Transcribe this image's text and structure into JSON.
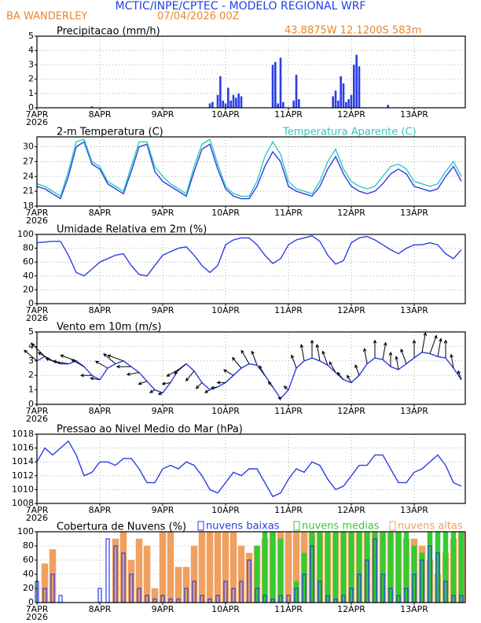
{
  "header": {
    "title": "MCTIC/INPE/CPTEC - MODELO REGIONAL WRF",
    "location": "BA WANDERLEY",
    "date": "07/04/2026 00Z",
    "coords": "43.8875W  12.1200S  583m"
  },
  "chart_data": [
    {
      "type": "bar",
      "title": "Precipitacao (mm/h)",
      "color": "#2a3ee6",
      "year": "2026",
      "x": [
        21,
        66,
        67,
        69,
        70,
        71,
        72,
        73,
        74,
        75,
        76,
        77,
        78,
        90,
        91,
        92,
        93,
        94,
        98,
        99,
        100,
        113,
        114,
        115,
        116,
        117,
        118,
        119,
        120,
        121,
        122,
        123,
        134
      ],
      "values": [
        0.1,
        0.3,
        0.4,
        0.9,
        2.2,
        0.5,
        0.3,
        1.4,
        0.5,
        0.9,
        0.7,
        1,
        0.8,
        3,
        3.2,
        0.3,
        3.5,
        0.4,
        0.5,
        2.3,
        0.6,
        0.8,
        1.2,
        0.5,
        2.2,
        1.7,
        0.4,
        0.6,
        0.9,
        3,
        3.7,
        2.9,
        0.2
      ],
      "xlim": [
        0,
        163.5
      ],
      "xticks": [
        {
          "value": 0,
          "label": "7APR"
        },
        {
          "value": 24,
          "label": "8APR"
        },
        {
          "value": 48,
          "label": "9APR"
        },
        {
          "value": 72,
          "label": "10APR"
        },
        {
          "value": 96,
          "label": "11APR"
        },
        {
          "value": 120,
          "label": "12APR"
        },
        {
          "value": 144,
          "label": "13APR"
        }
      ],
      "ylim": [
        0,
        5
      ],
      "yticks": [
        0,
        1,
        2,
        3,
        4,
        5
      ],
      "grid": true
    },
    {
      "type": "line",
      "title": "2-m Temperatura (C)",
      "year": "2026",
      "x": [
        0,
        3,
        6,
        9,
        12,
        15,
        18,
        21,
        24,
        27,
        30,
        33,
        36,
        39,
        42,
        45,
        48,
        51,
        54,
        57,
        60,
        63,
        66,
        69,
        72,
        75,
        78,
        81,
        84,
        87,
        90,
        93,
        96,
        99,
        102,
        105,
        108,
        111,
        114,
        117,
        120,
        123,
        126,
        129,
        132,
        135,
        138,
        141,
        144,
        147,
        150,
        153,
        156,
        159,
        162
      ],
      "series": [
        {
          "color": "#2a3ee6",
          "values": [
            22,
            21.5,
            20.5,
            19.5,
            24,
            30,
            31,
            26.5,
            25.5,
            22.5,
            21.5,
            20.5,
            25,
            30,
            30.5,
            25,
            23,
            22,
            21,
            20,
            25,
            29.5,
            30.5,
            25.5,
            21.5,
            20,
            19.5,
            19.5,
            22,
            26,
            29,
            27,
            22,
            21,
            20.5,
            20,
            22,
            25.5,
            28,
            24.5,
            22,
            21,
            20.5,
            21,
            22.5,
            24.5,
            25.5,
            24.5,
            22,
            21.5,
            21,
            21.5,
            24,
            26,
            23
          ]
        },
        {
          "name": "Temperatura Aparente (C)",
          "color": "#2ec9c0",
          "values": [
            22.5,
            22,
            21,
            20,
            25,
            31,
            31.5,
            27,
            26,
            23,
            22,
            21,
            26,
            31,
            31,
            26,
            24,
            22.5,
            21.5,
            20.5,
            26,
            30.5,
            31.5,
            26.5,
            22,
            20.5,
            20,
            20,
            23,
            28,
            31,
            28.5,
            23,
            21.5,
            21,
            20.5,
            23,
            27,
            29.5,
            25.5,
            23,
            22,
            21.5,
            22,
            24,
            26,
            26.5,
            25.5,
            23,
            22.5,
            22,
            22.5,
            25,
            27,
            24
          ]
        }
      ],
      "xlim": [
        0,
        163.5
      ],
      "xticks": [
        {
          "value": 0,
          "label": "7APR"
        },
        {
          "value": 24,
          "label": "8APR"
        },
        {
          "value": 48,
          "label": "9APR"
        },
        {
          "value": 72,
          "label": "10APR"
        },
        {
          "value": 96,
          "label": "11APR"
        },
        {
          "value": 120,
          "label": "12APR"
        },
        {
          "value": 144,
          "label": "13APR"
        }
      ],
      "ylim": [
        18,
        32
      ],
      "yticks": [
        18,
        21,
        24,
        27,
        30
      ],
      "grid": true
    },
    {
      "type": "line",
      "title": "Umidade Relativa em 2m (%)",
      "year": "2026",
      "x": [
        0,
        3,
        6,
        9,
        12,
        15,
        18,
        21,
        24,
        27,
        30,
        33,
        36,
        39,
        42,
        45,
        48,
        51,
        54,
        57,
        60,
        63,
        66,
        69,
        72,
        75,
        78,
        81,
        84,
        87,
        90,
        93,
        96,
        99,
        102,
        105,
        108,
        111,
        114,
        117,
        120,
        123,
        126,
        129,
        132,
        135,
        138,
        141,
        144,
        147,
        150,
        153,
        156,
        159,
        162
      ],
      "series": [
        {
          "color": "#2a3ee6",
          "values": [
            88,
            89,
            90,
            90,
            70,
            45,
            40,
            50,
            60,
            65,
            70,
            72,
            55,
            42,
            40,
            55,
            70,
            75,
            80,
            82,
            70,
            55,
            45,
            55,
            85,
            92,
            95,
            95,
            85,
            70,
            58,
            65,
            85,
            92,
            95,
            98,
            90,
            70,
            57,
            62,
            88,
            95,
            97,
            92,
            85,
            78,
            72,
            80,
            85,
            85,
            88,
            85,
            72,
            65,
            78
          ]
        }
      ],
      "xlim": [
        0,
        163.5
      ],
      "xticks": [
        {
          "value": 0,
          "label": "7APR"
        },
        {
          "value": 24,
          "label": "8APR"
        },
        {
          "value": 48,
          "label": "9APR"
        },
        {
          "value": 72,
          "label": "10APR"
        },
        {
          "value": 96,
          "label": "11APR"
        },
        {
          "value": 120,
          "label": "12APR"
        },
        {
          "value": 144,
          "label": "13APR"
        }
      ],
      "ylim": [
        0,
        100
      ],
      "yticks": [
        0,
        20,
        40,
        60,
        80,
        100
      ],
      "grid": true
    },
    {
      "type": "line",
      "title": "Vento em 10m (m/s)",
      "year": "2026",
      "x": [
        0,
        3,
        6,
        9,
        12,
        15,
        18,
        21,
        24,
        27,
        30,
        33,
        36,
        39,
        42,
        45,
        48,
        51,
        54,
        57,
        60,
        63,
        66,
        69,
        72,
        75,
        78,
        81,
        84,
        87,
        90,
        93,
        96,
        99,
        102,
        105,
        108,
        111,
        114,
        117,
        120,
        123,
        126,
        129,
        132,
        135,
        138,
        141,
        144,
        147,
        150,
        153,
        156,
        159,
        162
      ],
      "series": [
        {
          "color": "#2a3ee6",
          "values": [
            3,
            3.3,
            3,
            2.8,
            2.8,
            3,
            2.6,
            2,
            1.7,
            2.5,
            2.8,
            3,
            2.6,
            2.2,
            1.6,
            1,
            0.8,
            1.5,
            2.4,
            2.8,
            2.3,
            1.5,
            1,
            1.2,
            1.5,
            2,
            2.5,
            2.8,
            2.7,
            2,
            1.2,
            0.4,
            1,
            2.5,
            3,
            3.2,
            3,
            2.7,
            2.2,
            1.7,
            1.5,
            2,
            2.8,
            3.2,
            3.1,
            2.6,
            2.4,
            2.8,
            3.2,
            3.6,
            3.5,
            3.3,
            3.2,
            2.5,
            1.7
          ],
          "direction": [
            130,
            135,
            120,
            110,
            100,
            110,
            120,
            90,
            100,
            120,
            130,
            110,
            90,
            80,
            70,
            60,
            70,
            80,
            60,
            50,
            40,
            45,
            60,
            80,
            90,
            120,
            140,
            150,
            160,
            150,
            140,
            110,
            130,
            160,
            170,
            180,
            170,
            160,
            150,
            140,
            150,
            160,
            170,
            180,
            190,
            180,
            170,
            160,
            180,
            190,
            200,
            190,
            180,
            170,
            160
          ]
        }
      ],
      "xlim": [
        0,
        163.5
      ],
      "xticks": [
        {
          "value": 0,
          "label": "7APR"
        },
        {
          "value": 24,
          "label": "8APR"
        },
        {
          "value": 48,
          "label": "9APR"
        },
        {
          "value": 72,
          "label": "10APR"
        },
        {
          "value": 96,
          "label": "11APR"
        },
        {
          "value": 120,
          "label": "12APR"
        },
        {
          "value": 144,
          "label": "13APR"
        }
      ],
      "ylim": [
        0,
        5
      ],
      "yticks": [
        0,
        1,
        2,
        3,
        4,
        5
      ],
      "grid": true
    },
    {
      "type": "line",
      "title": "Pressao ao Nivel Medio do Mar (hPa)",
      "year": "2026",
      "x": [
        0,
        3,
        6,
        9,
        12,
        15,
        18,
        21,
        24,
        27,
        30,
        33,
        36,
        39,
        42,
        45,
        48,
        51,
        54,
        57,
        60,
        63,
        66,
        69,
        72,
        75,
        78,
        81,
        84,
        87,
        90,
        93,
        96,
        99,
        102,
        105,
        108,
        111,
        114,
        117,
        120,
        123,
        126,
        129,
        132,
        135,
        138,
        141,
        144,
        147,
        150,
        153,
        156,
        159,
        162
      ],
      "series": [
        {
          "color": "#2a3ee6",
          "values": [
            1014,
            1016,
            1015,
            1016,
            1017,
            1015,
            1012,
            1012.5,
            1014,
            1014,
            1013.5,
            1014.5,
            1014.5,
            1013,
            1011,
            1011,
            1013,
            1013.5,
            1013,
            1014,
            1013.5,
            1012,
            1010,
            1009.5,
            1011,
            1012.5,
            1012,
            1013,
            1013,
            1011,
            1009,
            1009.5,
            1011.5,
            1013,
            1012.5,
            1014,
            1013.5,
            1011.5,
            1010,
            1010.5,
            1012,
            1013.5,
            1013.5,
            1015,
            1015,
            1013,
            1011,
            1011,
            1012.5,
            1013,
            1014,
            1015,
            1013.5,
            1011,
            1010.5
          ]
        }
      ],
      "xlim": [
        0,
        163.5
      ],
      "xticks": [
        {
          "value": 0,
          "label": "7APR"
        },
        {
          "value": 24,
          "label": "8APR"
        },
        {
          "value": 48,
          "label": "9APR"
        },
        {
          "value": 72,
          "label": "10APR"
        },
        {
          "value": 96,
          "label": "11APR"
        },
        {
          "value": 120,
          "label": "12APR"
        },
        {
          "value": 144,
          "label": "13APR"
        }
      ],
      "ylim": [
        1008,
        1018
      ],
      "yticks": [
        1008,
        1010,
        1012,
        1014,
        1016,
        1018
      ],
      "grid": true
    },
    {
      "type": "bar",
      "title": "Cobertura de Nuvens (%)",
      "year": "2026",
      "x": [
        0,
        3,
        6,
        9,
        12,
        15,
        18,
        21,
        24,
        27,
        30,
        33,
        36,
        39,
        42,
        45,
        48,
        51,
        54,
        57,
        60,
        63,
        66,
        69,
        72,
        75,
        78,
        81,
        84,
        87,
        90,
        93,
        96,
        99,
        102,
        105,
        108,
        111,
        114,
        117,
        120,
        123,
        126,
        129,
        132,
        135,
        138,
        141,
        144,
        147,
        150,
        153,
        156,
        159,
        162
      ],
      "series": [
        {
          "name": "nuvens baixas",
          "color": "#2a3ee6",
          "values": [
            30,
            20,
            40,
            10,
            0,
            0,
            0,
            0,
            20,
            90,
            80,
            70,
            40,
            20,
            10,
            5,
            10,
            5,
            5,
            20,
            30,
            10,
            5,
            10,
            30,
            20,
            30,
            60,
            20,
            10,
            5,
            10,
            10,
            20,
            40,
            80,
            30,
            10,
            5,
            10,
            20,
            40,
            60,
            90,
            40,
            20,
            10,
            20,
            40,
            60,
            80,
            70,
            30,
            10,
            10
          ]
        },
        {
          "name": "nuvens medias",
          "color": "#33cc33",
          "values": [
            0,
            0,
            0,
            0,
            0,
            0,
            0,
            0,
            0,
            0,
            0,
            0,
            0,
            0,
            0,
            0,
            0,
            0,
            0,
            0,
            0,
            0,
            0,
            0,
            0,
            0,
            0,
            0,
            80,
            100,
            100,
            90,
            0,
            30,
            70,
            100,
            100,
            100,
            100,
            100,
            100,
            100,
            100,
            100,
            100,
            100,
            100,
            100,
            80,
            70,
            100,
            100,
            100,
            100,
            100
          ]
        },
        {
          "name": "nuvens altas",
          "color": "#f0a060",
          "values": [
            0,
            55,
            75,
            0,
            0,
            0,
            0,
            0,
            0,
            0,
            90,
            100,
            60,
            90,
            80,
            20,
            100,
            100,
            50,
            50,
            80,
            100,
            100,
            100,
            100,
            100,
            80,
            70,
            80,
            90,
            100,
            100,
            100,
            100,
            100,
            100,
            100,
            100,
            100,
            100,
            100,
            100,
            100,
            100,
            100,
            100,
            100,
            90,
            90,
            80,
            60,
            40,
            70,
            90,
            100
          ]
        }
      ],
      "xlim": [
        0,
        163.5
      ],
      "xticks": [
        {
          "value": 0,
          "label": "7APR"
        },
        {
          "value": 24,
          "label": "8APR"
        },
        {
          "value": 48,
          "label": "9APR"
        },
        {
          "value": 72,
          "label": "10APR"
        },
        {
          "value": 96,
          "label": "11APR"
        },
        {
          "value": 120,
          "label": "12APR"
        },
        {
          "value": 144,
          "label": "13APR"
        }
      ],
      "ylim": [
        0,
        100
      ],
      "yticks": [
        0,
        20,
        40,
        60,
        80,
        100
      ],
      "grid": true
    }
  ]
}
